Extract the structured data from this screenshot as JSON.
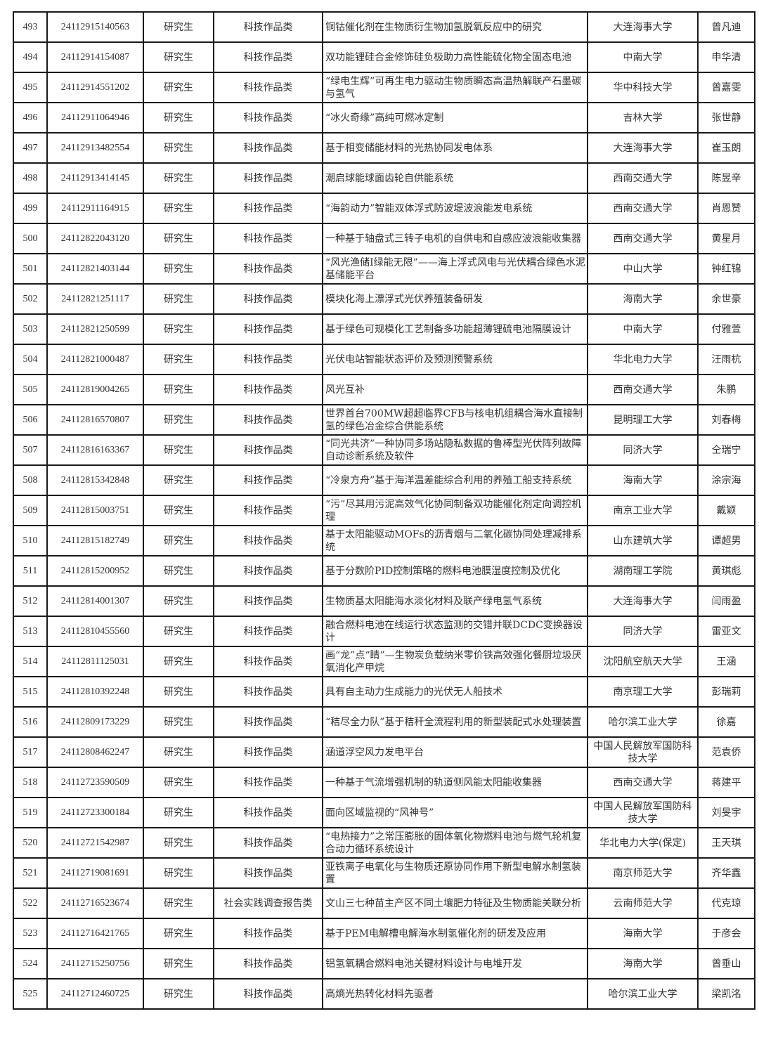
{
  "table": {
    "rows": [
      [
        "493",
        "24112915140563",
        "研究生",
        "科技作品类",
        "铜钴催化剂在生物质衍生物加氢脱氧反应中的研究",
        "大连海事大学",
        "曾凡迪"
      ],
      [
        "494",
        "24112914154087",
        "研究生",
        "科技作品类",
        "双功能锂硅合金修饰硅负极助力高性能硫化物全固态电池",
        "中南大学",
        "申华清"
      ],
      [
        "495",
        "24112914551202",
        "研究生",
        "科技作品类",
        "“绿电生辉”可再生电力驱动生物质瞬态高温热解联产石墨碳与氢气",
        "华中科技大学",
        "曾嘉雯"
      ],
      [
        "496",
        "24112911064946",
        "研究生",
        "科技作品类",
        "“冰火奇缘”高纯可燃冰定制",
        "吉林大学",
        "张世静"
      ],
      [
        "497",
        "24112913482554",
        "研究生",
        "科技作品类",
        "基于相变储能材料的光热协同发电体系",
        "大连海事大学",
        "崔玉朗"
      ],
      [
        "498",
        "24112913414145",
        "研究生",
        "科技作品类",
        "潮启球能球面齿轮自供能系统",
        "西南交通大学",
        "陈昱辛"
      ],
      [
        "499",
        "24112911164915",
        "研究生",
        "科技作品类",
        "“海韵动力”智能双体浮式防波堤波浪能发电系统",
        "西南交通大学",
        "肖恩赞"
      ],
      [
        "500",
        "24112822043120",
        "研究生",
        "科技作品类",
        "一种基于轴盘式三转子电机的自供电和自感应波浪能收集器",
        "西南交通大学",
        "黄星月"
      ],
      [
        "501",
        "24112821403144",
        "研究生",
        "科技作品类",
        "“风光渔储I绿能无限”——海上浮式风电与光伏耦合绿色水泥基储能平台",
        "中山大学",
        "钟红锦"
      ],
      [
        "502",
        "24112821251117",
        "研究生",
        "科技作品类",
        "模块化海上漂浮式光伏养殖装备研发",
        "海南大学",
        "余世豪"
      ],
      [
        "503",
        "24112821250599",
        "研究生",
        "科技作品类",
        "基于绿色可规模化工艺制备多功能超薄锂硫电池隔膜设计",
        "中南大学",
        "付雅萱"
      ],
      [
        "504",
        "24112821000487",
        "研究生",
        "科技作品类",
        "光伏电站智能状态评价及预测预警系统",
        "华北电力大学",
        "汪雨杭"
      ],
      [
        "505",
        "24112819004265",
        "研究生",
        "科技作品类",
        "风光互补",
        "西南交通大学",
        "朱鹏"
      ],
      [
        "506",
        "24112816570807",
        "研究生",
        "科技作品类",
        "世界首台700MW超超临界CFB与核电机组耦合海水直接制氢的绿色冶金综合供能系统",
        "昆明理工大学",
        "刘春梅"
      ],
      [
        "507",
        "24112816163367",
        "研究生",
        "科技作品类",
        "“同光共济”一种协同多场站隐私数据的鲁棒型光伏阵列故障自动诊断系统及软件",
        "同济大学",
        "仝瑞宁"
      ],
      [
        "508",
        "24112815342848",
        "研究生",
        "科技作品类",
        "“冷泉方舟”基于海洋温差能综合利用的养殖工船支持系统",
        "海南大学",
        "涂宗海"
      ],
      [
        "509",
        "24112815003751",
        "研究生",
        "科技作品类",
        "“污”尽其用污泥高效气化协同制备双功能催化剂定向调控机理",
        "南京工业大学",
        "戴颖"
      ],
      [
        "510",
        "24112815182749",
        "研究生",
        "科技作品类",
        "基于太阳能驱动MOFs的沥青烟与二氧化碳协同处理减排系统",
        "山东建筑大学",
        "谭超男"
      ],
      [
        "511",
        "24112815200952",
        "研究生",
        "科技作品类",
        "基于分数阶PID控制策略的燃料电池膜湿度控制及优化",
        "湖南理工学院",
        "黄琪彪"
      ],
      [
        "512",
        "24112814001307",
        "研究生",
        "科技作品类",
        "生物质基太阳能海水淡化材料及联产绿电氢气系统",
        "大连海事大学",
        "闫雨盈"
      ],
      [
        "513",
        "24112810455560",
        "研究生",
        "科技作品类",
        "融合燃料电池在线运行状态监测的交错并联DCDC变换器设计",
        "同济大学",
        "雷亚文"
      ],
      [
        "514",
        "24112811125031",
        "研究生",
        "科技作品类",
        "画“龙”点“睛”—生物炭负载纳米零价铁高效强化餐厨垃圾厌氧消化产甲烷",
        "沈阳航空航天大学",
        "王涵"
      ],
      [
        "515",
        "24112810392248",
        "研究生",
        "科技作品类",
        "具有自主动力生成能力的光伏无人船技术",
        "南京理工大学",
        "彭瑞莉"
      ],
      [
        "516",
        "24112809173229",
        "研究生",
        "科技作品类",
        "“秸尽全力队”基于秸秆全流程利用的新型装配式水处理装置",
        "哈尔滨工业大学",
        "徐嘉"
      ],
      [
        "517",
        "24112808462247",
        "研究生",
        "科技作品类",
        "涵道浮空风力发电平台",
        "中国人民解放军国防科技大学",
        "范袁侨"
      ],
      [
        "518",
        "24112723590509",
        "研究生",
        "科技作品类",
        "一种基于气流增强机制的轨道侧风能太阳能收集器",
        "西南交通大学",
        "蒋建平"
      ],
      [
        "519",
        "24112723300184",
        "研究生",
        "科技作品类",
        "面向区域监视的“风神号”",
        "中国人民解放军国防科技大学",
        "刘旻宇"
      ],
      [
        "520",
        "24112721542987",
        "研究生",
        "科技作品类",
        "“电热接力”之常压膨胀的固体氧化物燃料电池与燃气轮机复合动力循环系统设计",
        "华北电力大学(保定)",
        "王天琪"
      ],
      [
        "521",
        "24112719081691",
        "研究生",
        "科技作品类",
        "亚铁离子电氧化与生物质还原协同作用下新型电解水制氢装置",
        "南京师范大学",
        "齐华鑫"
      ],
      [
        "522",
        "24112716523674",
        "研究生",
        "社会实践调查报告类",
        "文山三七种苗主产区不同土壤肥力特征及生物质能关联分析",
        "云南师范大学",
        "代克琼"
      ],
      [
        "523",
        "24112716421765",
        "研究生",
        "科技作品类",
        "基于PEM电解槽电解海水制氢催化剂的研发及应用",
        "海南大学",
        "于彦会"
      ],
      [
        "524",
        "24112715250756",
        "研究生",
        "科技作品类",
        "铝氢氧耦合燃料电池关键材料设计与电堆开发",
        "海南大学",
        "曾垂山"
      ],
      [
        "525",
        "24112712460725",
        "研究生",
        "科技作品类",
        "高熵光热转化材料先驱者",
        "哈尔滨工业大学",
        "梁凯洺"
      ]
    ]
  }
}
